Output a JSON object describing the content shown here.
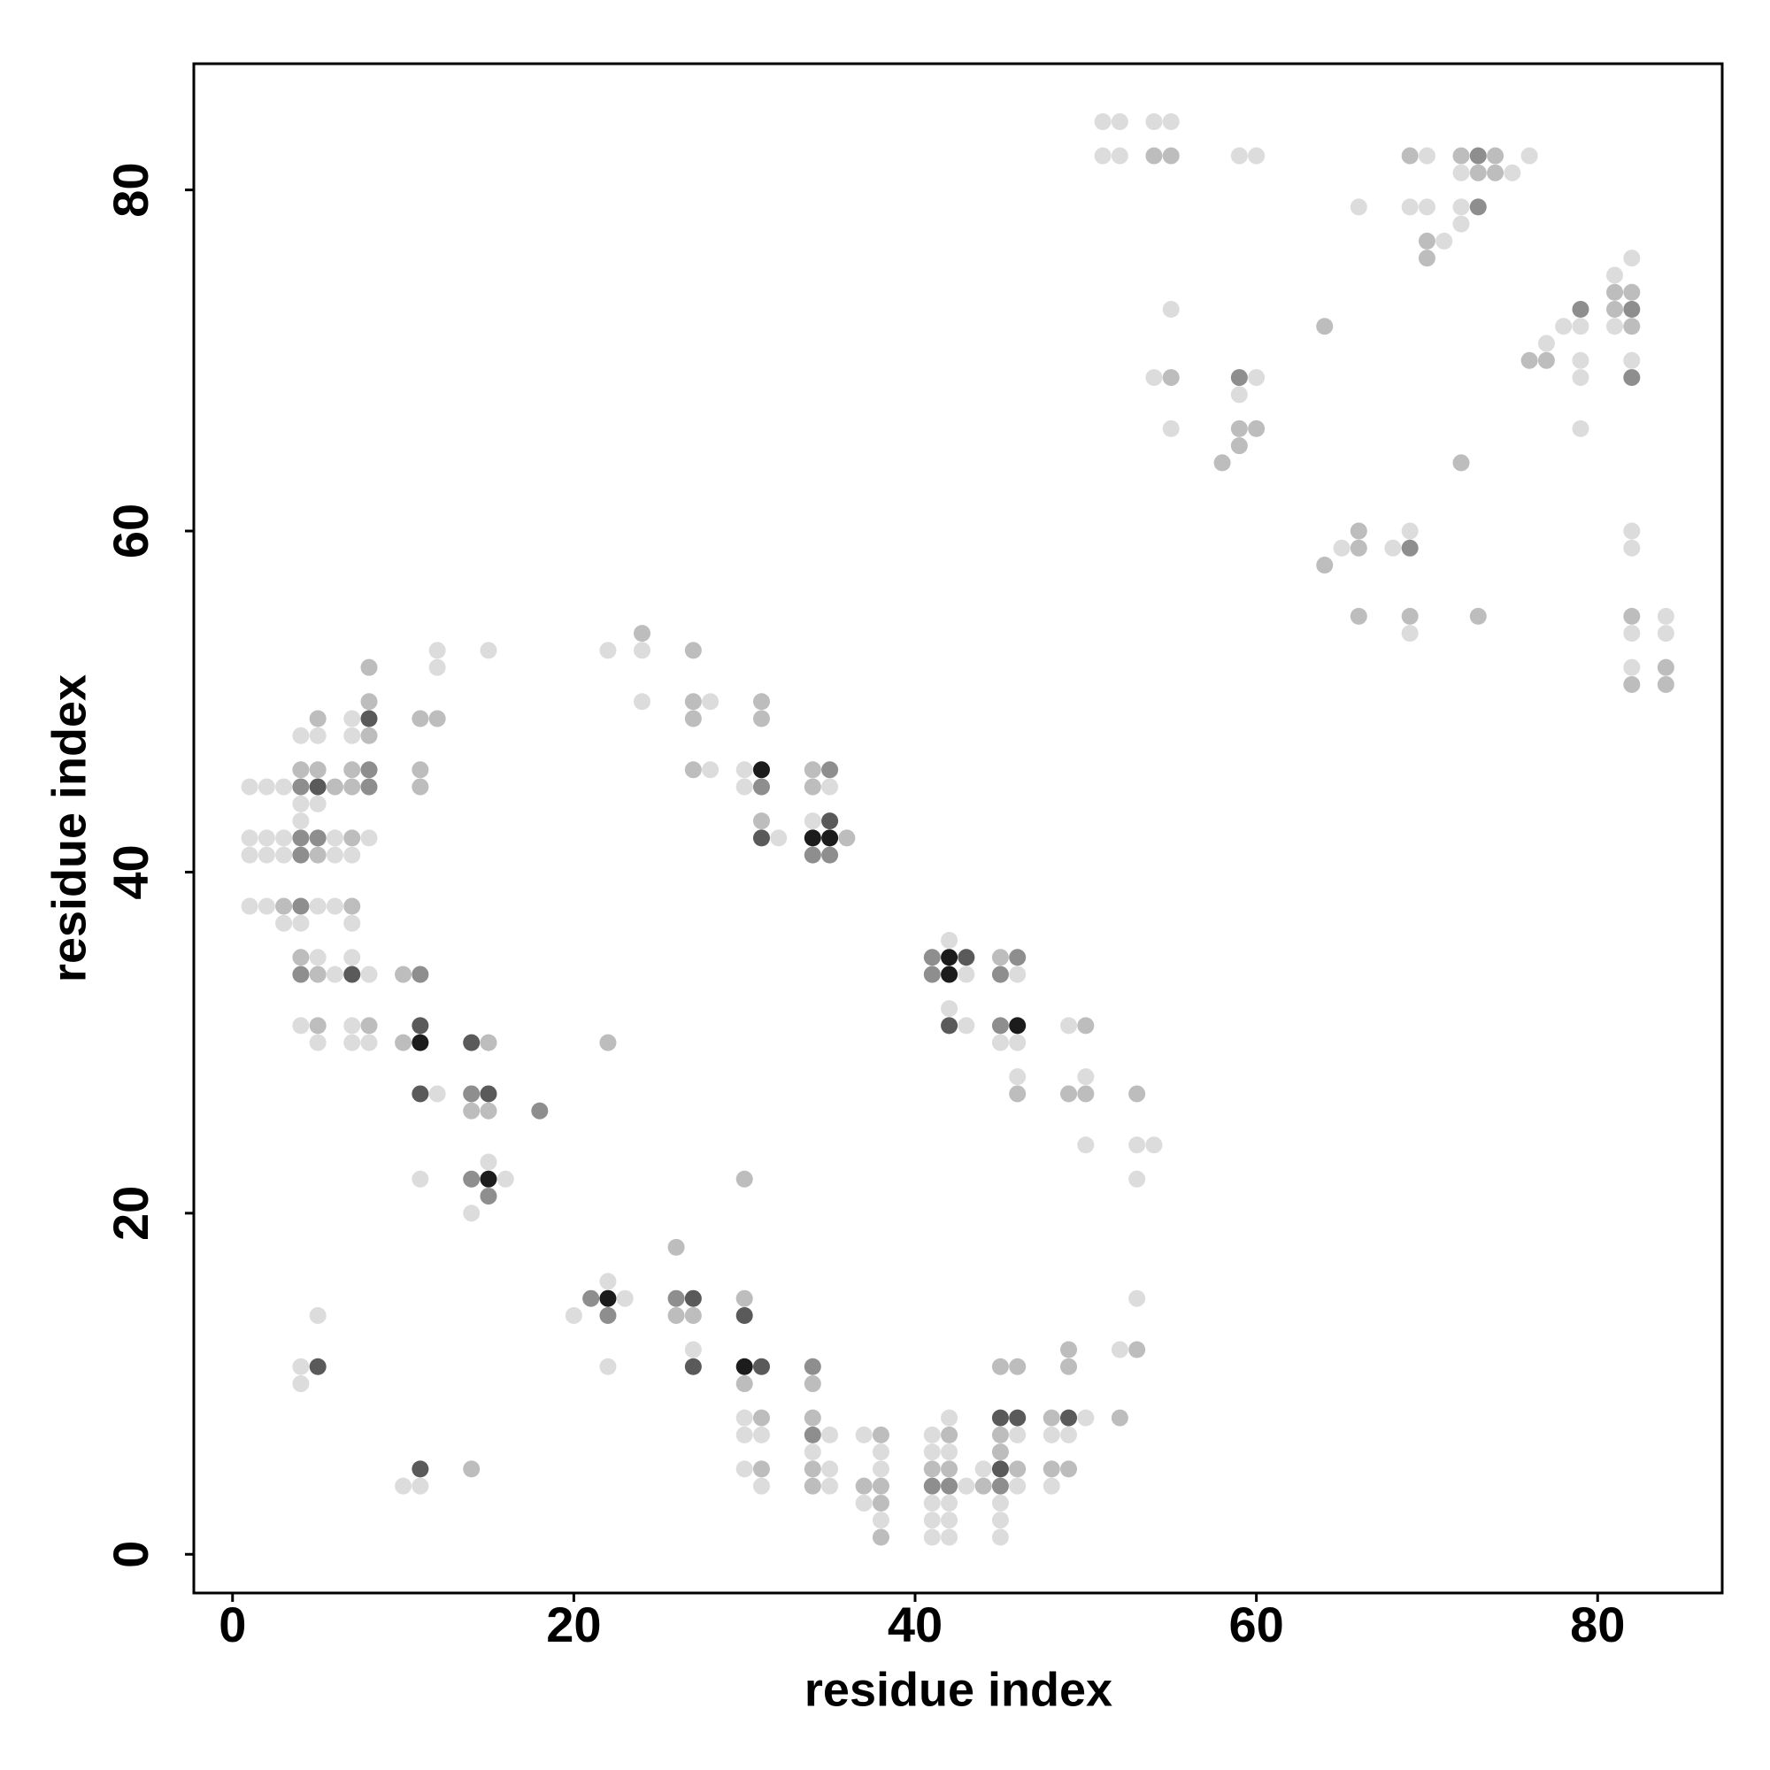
{
  "chart_data": {
    "type": "scatter",
    "xlabel": "residue index",
    "ylabel": "residue index",
    "xlim": [
      -2.27,
      87.3
    ],
    "ylim": [
      -2.27,
      87.4
    ],
    "xticks": [
      0,
      20,
      40,
      60,
      80
    ],
    "yticks": [
      0,
      20,
      40,
      60,
      80
    ],
    "shades": [
      "#dcdcdc",
      "#bdbdbd",
      "#8e8e8e",
      "#5a5a5a",
      "#1c1c1c"
    ],
    "points": [
      [
        51,
        84,
        1
      ],
      [
        52,
        84,
        1
      ],
      [
        54,
        84,
        1
      ],
      [
        55,
        84,
        1
      ],
      [
        51,
        82,
        1
      ],
      [
        52,
        82,
        1
      ],
      [
        54,
        82,
        2
      ],
      [
        55,
        82,
        2
      ],
      [
        59,
        82,
        1
      ],
      [
        60,
        82,
        1
      ],
      [
        69,
        82,
        2
      ],
      [
        70,
        82,
        1
      ],
      [
        72,
        82,
        2
      ],
      [
        73,
        82,
        3
      ],
      [
        74,
        82,
        2
      ],
      [
        76,
        82,
        1
      ],
      [
        72,
        81,
        1
      ],
      [
        73,
        81,
        2
      ],
      [
        74,
        81,
        2
      ],
      [
        75,
        81,
        1
      ],
      [
        66,
        79,
        1
      ],
      [
        69,
        79,
        1
      ],
      [
        70,
        79,
        1
      ],
      [
        72,
        79,
        1
      ],
      [
        73,
        79,
        3
      ],
      [
        72,
        78,
        1
      ],
      [
        70,
        77,
        2
      ],
      [
        71,
        77,
        1
      ],
      [
        70,
        76,
        2
      ],
      [
        82,
        76,
        1
      ],
      [
        81,
        75,
        1
      ],
      [
        81,
        74,
        2
      ],
      [
        82,
        74,
        2
      ],
      [
        55,
        73,
        1
      ],
      [
        79,
        73,
        3
      ],
      [
        81,
        73,
        2
      ],
      [
        82,
        73,
        3
      ],
      [
        64,
        72,
        2
      ],
      [
        78,
        72,
        1
      ],
      [
        79,
        72,
        1
      ],
      [
        81,
        72,
        1
      ],
      [
        82,
        72,
        2
      ],
      [
        77,
        71,
        1
      ],
      [
        76,
        70,
        2
      ],
      [
        77,
        70,
        2
      ],
      [
        79,
        70,
        1
      ],
      [
        82,
        70,
        1
      ],
      [
        54,
        69,
        1
      ],
      [
        55,
        69,
        2
      ],
      [
        59,
        69,
        3
      ],
      [
        60,
        69,
        1
      ],
      [
        79,
        69,
        1
      ],
      [
        82,
        69,
        3
      ],
      [
        59,
        68,
        1
      ],
      [
        55,
        66,
        1
      ],
      [
        59,
        66,
        2
      ],
      [
        60,
        66,
        2
      ],
      [
        79,
        66,
        1
      ],
      [
        59,
        65,
        2
      ],
      [
        58,
        64,
        2
      ],
      [
        72,
        64,
        2
      ],
      [
        66,
        60,
        2
      ],
      [
        69,
        60,
        1
      ],
      [
        82,
        60,
        1
      ],
      [
        65,
        59,
        1
      ],
      [
        66,
        59,
        2
      ],
      [
        68,
        59,
        1
      ],
      [
        69,
        59,
        3
      ],
      [
        82,
        59,
        1
      ],
      [
        64,
        58,
        2
      ],
      [
        66,
        55,
        2
      ],
      [
        69,
        55,
        2
      ],
      [
        73,
        55,
        2
      ],
      [
        82,
        55,
        2
      ],
      [
        84,
        55,
        1
      ],
      [
        24,
        54,
        2
      ],
      [
        69,
        54,
        1
      ],
      [
        82,
        54,
        1
      ],
      [
        84,
        54,
        1
      ],
      [
        12,
        53,
        1
      ],
      [
        15,
        53,
        1
      ],
      [
        22,
        53,
        1
      ],
      [
        24,
        53,
        1
      ],
      [
        27,
        53,
        2
      ],
      [
        8,
        52,
        2
      ],
      [
        12,
        52,
        1
      ],
      [
        82,
        52,
        1
      ],
      [
        84,
        52,
        2
      ],
      [
        82,
        51,
        2
      ],
      [
        84,
        51,
        2
      ],
      [
        8,
        50,
        2
      ],
      [
        24,
        50,
        1
      ],
      [
        27,
        50,
        2
      ],
      [
        28,
        50,
        1
      ],
      [
        31,
        50,
        2
      ],
      [
        5,
        49,
        2
      ],
      [
        7,
        49,
        1
      ],
      [
        8,
        49,
        4
      ],
      [
        11,
        49,
        2
      ],
      [
        12,
        49,
        2
      ],
      [
        27,
        49,
        2
      ],
      [
        31,
        49,
        2
      ],
      [
        4,
        48,
        1
      ],
      [
        5,
        48,
        1
      ],
      [
        7,
        48,
        1
      ],
      [
        8,
        48,
        2
      ],
      [
        4,
        46,
        2
      ],
      [
        5,
        46,
        2
      ],
      [
        7,
        46,
        2
      ],
      [
        8,
        46,
        3
      ],
      [
        11,
        46,
        2
      ],
      [
        27,
        46,
        2
      ],
      [
        28,
        46,
        1
      ],
      [
        30,
        46,
        1
      ],
      [
        31,
        46,
        5
      ],
      [
        34,
        46,
        2
      ],
      [
        35,
        46,
        3
      ],
      [
        1,
        45,
        1
      ],
      [
        2,
        45,
        1
      ],
      [
        3,
        45,
        1
      ],
      [
        4,
        45,
        3
      ],
      [
        5,
        45,
        4
      ],
      [
        6,
        45,
        2
      ],
      [
        7,
        45,
        2
      ],
      [
        8,
        45,
        3
      ],
      [
        11,
        45,
        2
      ],
      [
        30,
        45,
        1
      ],
      [
        31,
        45,
        3
      ],
      [
        34,
        45,
        2
      ],
      [
        35,
        45,
        1
      ],
      [
        4,
        44,
        1
      ],
      [
        5,
        44,
        1
      ],
      [
        4,
        43,
        1
      ],
      [
        31,
        43,
        2
      ],
      [
        34,
        43,
        1
      ],
      [
        35,
        43,
        4
      ],
      [
        1,
        42,
        1
      ],
      [
        2,
        42,
        1
      ],
      [
        3,
        42,
        1
      ],
      [
        4,
        42,
        3
      ],
      [
        5,
        42,
        3
      ],
      [
        6,
        42,
        1
      ],
      [
        7,
        42,
        2
      ],
      [
        8,
        42,
        1
      ],
      [
        31,
        42,
        4
      ],
      [
        32,
        42,
        1
      ],
      [
        34,
        42,
        5
      ],
      [
        35,
        42,
        5
      ],
      [
        36,
        42,
        2
      ],
      [
        1,
        41,
        1
      ],
      [
        2,
        41,
        1
      ],
      [
        3,
        41,
        1
      ],
      [
        4,
        41,
        3
      ],
      [
        5,
        41,
        2
      ],
      [
        6,
        41,
        1
      ],
      [
        7,
        41,
        1
      ],
      [
        34,
        41,
        3
      ],
      [
        35,
        41,
        3
      ],
      [
        1,
        38,
        1
      ],
      [
        2,
        38,
        1
      ],
      [
        3,
        38,
        2
      ],
      [
        4,
        38,
        3
      ],
      [
        5,
        38,
        1
      ],
      [
        6,
        38,
        1
      ],
      [
        7,
        38,
        2
      ],
      [
        3,
        37,
        1
      ],
      [
        4,
        37,
        1
      ],
      [
        7,
        37,
        1
      ],
      [
        42,
        36,
        1
      ],
      [
        4,
        35,
        2
      ],
      [
        5,
        35,
        1
      ],
      [
        7,
        35,
        1
      ],
      [
        41,
        35,
        3
      ],
      [
        42,
        35,
        5
      ],
      [
        43,
        35,
        4
      ],
      [
        45,
        35,
        2
      ],
      [
        46,
        35,
        3
      ],
      [
        4,
        34,
        3
      ],
      [
        5,
        34,
        2
      ],
      [
        6,
        34,
        1
      ],
      [
        7,
        34,
        4
      ],
      [
        8,
        34,
        1
      ],
      [
        10,
        34,
        2
      ],
      [
        11,
        34,
        3
      ],
      [
        41,
        34,
        3
      ],
      [
        42,
        34,
        5
      ],
      [
        43,
        34,
        1
      ],
      [
        45,
        34,
        3
      ],
      [
        46,
        34,
        1
      ],
      [
        42,
        32,
        1
      ],
      [
        4,
        31,
        1
      ],
      [
        5,
        31,
        2
      ],
      [
        7,
        31,
        1
      ],
      [
        8,
        31,
        2
      ],
      [
        11,
        31,
        4
      ],
      [
        42,
        31,
        4
      ],
      [
        43,
        31,
        1
      ],
      [
        45,
        31,
        3
      ],
      [
        46,
        31,
        5
      ],
      [
        49,
        31,
        1
      ],
      [
        50,
        31,
        2
      ],
      [
        5,
        30,
        1
      ],
      [
        7,
        30,
        1
      ],
      [
        8,
        30,
        1
      ],
      [
        10,
        30,
        2
      ],
      [
        11,
        30,
        5
      ],
      [
        14,
        30,
        4
      ],
      [
        15,
        30,
        2
      ],
      [
        22,
        30,
        2
      ],
      [
        45,
        30,
        1
      ],
      [
        46,
        30,
        1
      ],
      [
        46,
        28,
        1
      ],
      [
        50,
        28,
        1
      ],
      [
        11,
        27,
        4
      ],
      [
        12,
        27,
        1
      ],
      [
        14,
        27,
        3
      ],
      [
        15,
        27,
        4
      ],
      [
        46,
        27,
        2
      ],
      [
        49,
        27,
        2
      ],
      [
        50,
        27,
        2
      ],
      [
        53,
        27,
        2
      ],
      [
        14,
        26,
        2
      ],
      [
        15,
        26,
        2
      ],
      [
        18,
        26,
        3
      ],
      [
        50,
        24,
        1
      ],
      [
        53,
        24,
        1
      ],
      [
        54,
        24,
        1
      ],
      [
        15,
        23,
        1
      ],
      [
        11,
        22,
        1
      ],
      [
        14,
        22,
        3
      ],
      [
        15,
        22,
        5
      ],
      [
        16,
        22,
        1
      ],
      [
        30,
        22,
        2
      ],
      [
        53,
        22,
        1
      ],
      [
        15,
        21,
        3
      ],
      [
        14,
        20,
        1
      ],
      [
        26,
        18,
        2
      ],
      [
        22,
        16,
        1
      ],
      [
        21,
        15,
        3
      ],
      [
        22,
        15,
        5
      ],
      [
        23,
        15,
        1
      ],
      [
        26,
        15,
        3
      ],
      [
        27,
        15,
        4
      ],
      [
        30,
        15,
        2
      ],
      [
        53,
        15,
        1
      ],
      [
        5,
        14,
        1
      ],
      [
        20,
        14,
        1
      ],
      [
        22,
        14,
        3
      ],
      [
        26,
        14,
        2
      ],
      [
        27,
        14,
        2
      ],
      [
        30,
        14,
        4
      ],
      [
        27,
        12,
        1
      ],
      [
        49,
        12,
        2
      ],
      [
        52,
        12,
        1
      ],
      [
        53,
        12,
        2
      ],
      [
        4,
        11,
        1
      ],
      [
        5,
        11,
        4
      ],
      [
        22,
        11,
        1
      ],
      [
        27,
        11,
        4
      ],
      [
        30,
        11,
        5
      ],
      [
        31,
        11,
        4
      ],
      [
        34,
        11,
        3
      ],
      [
        45,
        11,
        2
      ],
      [
        46,
        11,
        2
      ],
      [
        49,
        11,
        2
      ],
      [
        4,
        10,
        1
      ],
      [
        30,
        10,
        2
      ],
      [
        34,
        10,
        2
      ],
      [
        30,
        8,
        1
      ],
      [
        31,
        8,
        2
      ],
      [
        34,
        8,
        2
      ],
      [
        42,
        8,
        1
      ],
      [
        45,
        8,
        4
      ],
      [
        46,
        8,
        4
      ],
      [
        48,
        8,
        2
      ],
      [
        49,
        8,
        4
      ],
      [
        50,
        8,
        1
      ],
      [
        52,
        8,
        2
      ],
      [
        30,
        7,
        1
      ],
      [
        31,
        7,
        1
      ],
      [
        34,
        7,
        3
      ],
      [
        35,
        7,
        1
      ],
      [
        37,
        7,
        1
      ],
      [
        38,
        7,
        2
      ],
      [
        41,
        7,
        1
      ],
      [
        42,
        7,
        2
      ],
      [
        45,
        7,
        2
      ],
      [
        46,
        7,
        1
      ],
      [
        48,
        7,
        1
      ],
      [
        49,
        7,
        1
      ],
      [
        34,
        6,
        1
      ],
      [
        38,
        6,
        1
      ],
      [
        41,
        6,
        1
      ],
      [
        42,
        6,
        1
      ],
      [
        45,
        6,
        2
      ],
      [
        11,
        5,
        4
      ],
      [
        14,
        5,
        2
      ],
      [
        30,
        5,
        1
      ],
      [
        31,
        5,
        2
      ],
      [
        34,
        5,
        2
      ],
      [
        35,
        5,
        1
      ],
      [
        38,
        5,
        1
      ],
      [
        41,
        5,
        2
      ],
      [
        42,
        5,
        2
      ],
      [
        44,
        5,
        1
      ],
      [
        45,
        5,
        4
      ],
      [
        46,
        5,
        2
      ],
      [
        48,
        5,
        2
      ],
      [
        49,
        5,
        2
      ],
      [
        10,
        4,
        1
      ],
      [
        11,
        4,
        1
      ],
      [
        31,
        4,
        1
      ],
      [
        34,
        4,
        2
      ],
      [
        35,
        4,
        1
      ],
      [
        37,
        4,
        2
      ],
      [
        38,
        4,
        2
      ],
      [
        41,
        4,
        3
      ],
      [
        42,
        4,
        3
      ],
      [
        43,
        4,
        1
      ],
      [
        44,
        4,
        2
      ],
      [
        45,
        4,
        3
      ],
      [
        46,
        4,
        1
      ],
      [
        48,
        4,
        1
      ],
      [
        37,
        3,
        1
      ],
      [
        38,
        3,
        2
      ],
      [
        41,
        3,
        1
      ],
      [
        42,
        3,
        1
      ],
      [
        45,
        3,
        1
      ],
      [
        38,
        2,
        1
      ],
      [
        41,
        2,
        1
      ],
      [
        42,
        2,
        1
      ],
      [
        45,
        2,
        1
      ],
      [
        38,
        1,
        2
      ],
      [
        41,
        1,
        1
      ],
      [
        42,
        1,
        1
      ],
      [
        45,
        1,
        1
      ]
    ]
  }
}
